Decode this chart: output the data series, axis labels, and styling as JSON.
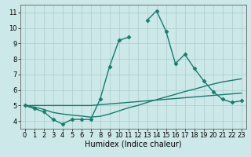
{
  "xlabel": "Humidex (Indice chaleur)",
  "x": [
    0,
    1,
    2,
    3,
    4,
    5,
    6,
    7,
    8,
    9,
    10,
    11,
    12,
    13,
    14,
    15,
    16,
    17,
    18,
    19,
    20,
    21,
    22,
    23
  ],
  "line1": [
    5.0,
    4.8,
    4.6,
    4.1,
    3.8,
    4.1,
    4.1,
    4.1,
    5.4,
    7.5,
    9.2,
    9.4,
    null,
    10.5,
    11.1,
    9.8,
    7.7,
    8.3,
    7.4,
    6.6,
    5.9,
    5.4,
    5.2,
    5.3
  ],
  "line2": [
    5.0,
    5.0,
    5.0,
    5.0,
    5.0,
    5.0,
    5.0,
    5.0,
    5.05,
    5.1,
    5.15,
    5.2,
    5.25,
    5.3,
    5.35,
    5.4,
    5.45,
    5.5,
    5.55,
    5.6,
    5.65,
    5.7,
    5.75,
    5.8
  ],
  "line3": [
    5.0,
    4.9,
    4.75,
    4.55,
    4.45,
    4.38,
    4.32,
    4.25,
    4.3,
    4.45,
    4.65,
    4.85,
    5.0,
    5.2,
    5.38,
    5.55,
    5.72,
    5.9,
    6.05,
    6.22,
    6.38,
    6.52,
    6.62,
    6.72
  ],
  "line_color": "#1a7a6e",
  "background_color": "#cce8e8",
  "grid_color": "#aacccc",
  "ylim": [
    3.5,
    11.5
  ],
  "yticks": [
    4,
    5,
    6,
    7,
    8,
    9,
    10,
    11
  ],
  "xlim": [
    -0.5,
    23.5
  ],
  "xticks": [
    0,
    1,
    2,
    3,
    4,
    5,
    6,
    7,
    8,
    9,
    10,
    11,
    12,
    13,
    14,
    15,
    16,
    17,
    18,
    19,
    20,
    21,
    22,
    23
  ],
  "xlabel_fontsize": 7,
  "tick_fontsize": 6,
  "line_width": 1.0,
  "marker": "D",
  "marker_size": 2.5
}
